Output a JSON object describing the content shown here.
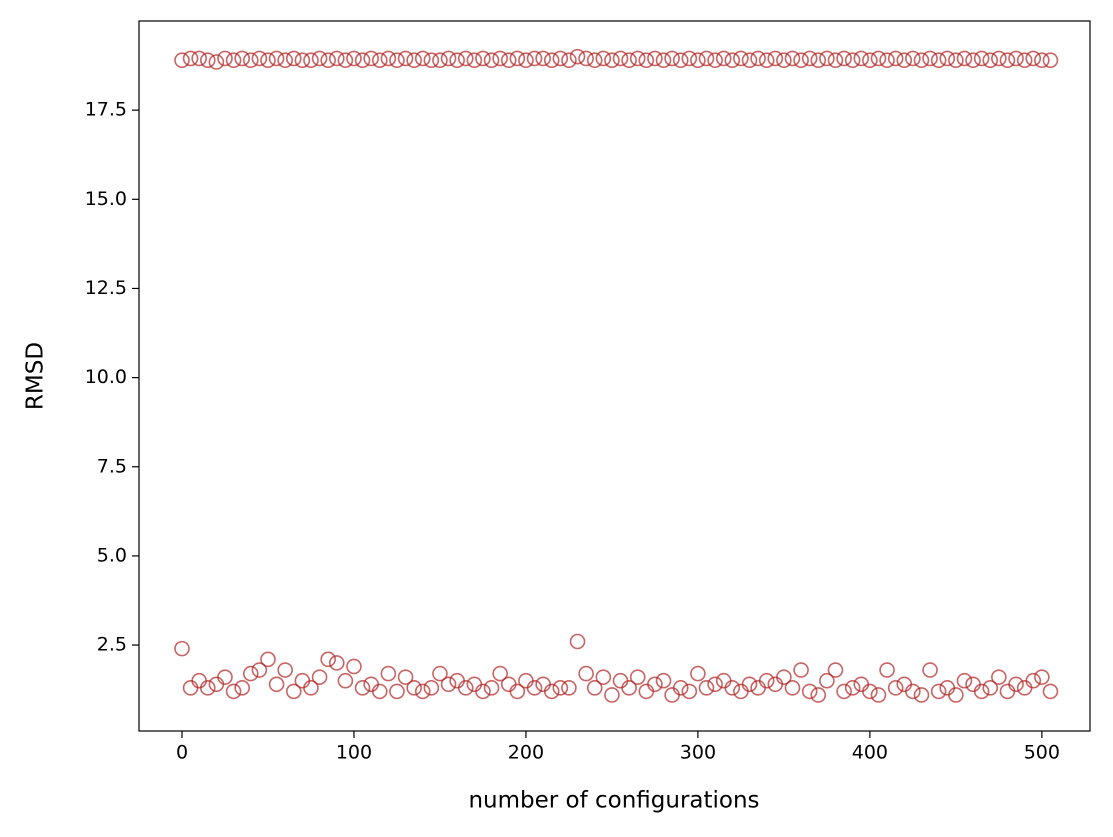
{
  "chart_data": {
    "type": "scatter",
    "xlabel": "number of configurations",
    "ylabel": "RMSD",
    "xlim": [
      -25,
      528
    ],
    "ylim": [
      0.09,
      20.0
    ],
    "xticks": [
      0,
      100,
      200,
      300,
      400,
      500
    ],
    "yticks": [
      2.5,
      {
        "value": 5,
        "label": "5.0"
      },
      7.5,
      {
        "value": 10,
        "label": "10.0"
      },
      12.5,
      {
        "value": 15,
        "label": "15.0"
      },
      17.5
    ],
    "series": [
      {
        "color": "#b22222",
        "x": [
          0,
          5,
          10,
          15,
          20,
          25,
          30,
          35,
          40,
          45,
          50,
          55,
          60,
          65,
          70,
          75,
          80,
          85,
          90,
          95,
          100,
          105,
          110,
          115,
          120,
          125,
          130,
          135,
          140,
          145,
          150,
          155,
          160,
          165,
          170,
          175,
          180,
          185,
          190,
          195,
          200,
          205,
          210,
          215,
          220,
          225,
          230,
          235,
          240,
          245,
          250,
          255,
          260,
          265,
          270,
          275,
          280,
          285,
          290,
          295,
          300,
          305,
          310,
          315,
          320,
          325,
          330,
          335,
          340,
          345,
          350,
          355,
          360,
          365,
          370,
          375,
          380,
          385,
          390,
          395,
          400,
          405,
          410,
          415,
          420,
          425,
          430,
          435,
          440,
          445,
          450,
          455,
          460,
          465,
          470,
          475,
          480,
          485,
          490,
          495,
          500,
          505
        ],
        "values": [
          18.9,
          18.95,
          18.95,
          18.9,
          18.85,
          18.95,
          18.9,
          18.95,
          18.9,
          18.95,
          18.9,
          18.95,
          18.9,
          18.95,
          18.9,
          18.9,
          18.95,
          18.9,
          18.95,
          18.9,
          18.95,
          18.9,
          18.95,
          18.9,
          18.95,
          18.9,
          18.95,
          18.9,
          18.95,
          18.9,
          18.9,
          18.95,
          18.9,
          18.95,
          18.9,
          18.95,
          18.9,
          18.95,
          18.9,
          18.95,
          18.9,
          18.95,
          18.95,
          18.9,
          18.95,
          18.9,
          19.0,
          18.95,
          18.9,
          18.95,
          18.9,
          18.95,
          18.9,
          18.95,
          18.9,
          18.95,
          18.9,
          18.95,
          18.9,
          18.95,
          18.9,
          18.95,
          18.9,
          18.95,
          18.9,
          18.95,
          18.9,
          18.95,
          18.9,
          18.95,
          18.9,
          18.95,
          18.9,
          18.95,
          18.9,
          18.95,
          18.9,
          18.95,
          18.9,
          18.95,
          18.9,
          18.95,
          18.9,
          18.95,
          18.9,
          18.95,
          18.9,
          18.95,
          18.9,
          18.95,
          18.9,
          18.95,
          18.9,
          18.95,
          18.9,
          18.95,
          18.9,
          18.95,
          18.9,
          18.95,
          18.9,
          18.9
        ]
      },
      {
        "color": "#b22222",
        "x": [
          0,
          5,
          10,
          15,
          20,
          25,
          30,
          35,
          40,
          45,
          50,
          55,
          60,
          65,
          70,
          75,
          80,
          85,
          90,
          95,
          100,
          105,
          110,
          115,
          120,
          125,
          130,
          135,
          140,
          145,
          150,
          155,
          160,
          165,
          170,
          175,
          180,
          185,
          190,
          195,
          200,
          205,
          210,
          215,
          220,
          225,
          230,
          235,
          240,
          245,
          250,
          255,
          260,
          265,
          270,
          275,
          280,
          285,
          290,
          295,
          300,
          305,
          310,
          315,
          320,
          325,
          330,
          335,
          340,
          345,
          350,
          355,
          360,
          365,
          370,
          375,
          380,
          385,
          390,
          395,
          400,
          405,
          410,
          415,
          420,
          425,
          430,
          435,
          440,
          445,
          450,
          455,
          460,
          465,
          470,
          475,
          480,
          485,
          490,
          495,
          500,
          505
        ],
        "values": [
          2.4,
          1.3,
          1.5,
          1.3,
          1.4,
          1.6,
          1.2,
          1.3,
          1.7,
          1.8,
          2.1,
          1.4,
          1.8,
          1.2,
          1.5,
          1.3,
          1.6,
          2.1,
          2.0,
          1.5,
          1.9,
          1.3,
          1.4,
          1.2,
          1.7,
          1.2,
          1.6,
          1.3,
          1.2,
          1.3,
          1.7,
          1.4,
          1.5,
          1.3,
          1.4,
          1.2,
          1.3,
          1.7,
          1.4,
          1.2,
          1.5,
          1.3,
          1.4,
          1.2,
          1.3,
          1.3,
          2.6,
          1.7,
          1.3,
          1.6,
          1.1,
          1.5,
          1.3,
          1.6,
          1.2,
          1.4,
          1.5,
          1.1,
          1.3,
          1.2,
          1.7,
          1.3,
          1.4,
          1.5,
          1.3,
          1.2,
          1.4,
          1.3,
          1.5,
          1.4,
          1.6,
          1.3,
          1.8,
          1.2,
          1.1,
          1.5,
          1.8,
          1.2,
          1.3,
          1.4,
          1.2,
          1.1,
          1.8,
          1.3,
          1.4,
          1.2,
          1.1,
          1.8,
          1.2,
          1.3,
          1.1,
          1.5,
          1.4,
          1.2,
          1.3,
          1.6,
          1.2,
          1.4,
          1.3,
          1.5,
          1.6,
          1.2
        ]
      }
    ]
  }
}
